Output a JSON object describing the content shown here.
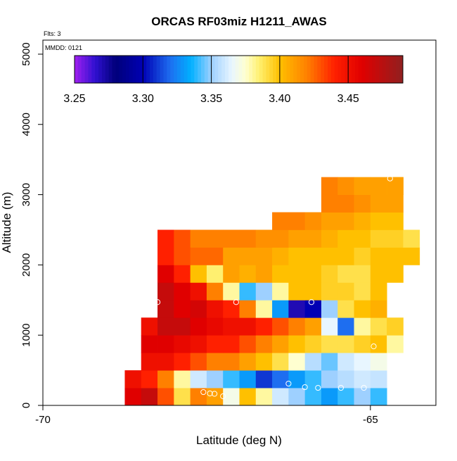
{
  "chart_data": {
    "type": "heatmap",
    "title": "ORCAS RF03miz H1211_AWAS",
    "xlabel": "Latitude (deg N)",
    "ylabel": "Altitude (m)",
    "annotations": {
      "flights": "Flts: 3",
      "date": "MMDD: 0121"
    },
    "x_ticks": [
      -70,
      -65
    ],
    "y_ticks": [
      0,
      1000,
      2000,
      3000,
      4000,
      5000
    ],
    "xlim": [
      -70,
      -64
    ],
    "ylim": [
      0,
      5200
    ],
    "colorbar": {
      "range": [
        3.25,
        3.49
      ],
      "ticks": [
        3.25,
        3.3,
        3.35,
        3.4,
        3.45
      ],
      "tick_labels": [
        "3.25",
        "3.30",
        "3.35",
        "3.40",
        "3.45"
      ],
      "stops": [
        [
          3.25,
          "#a020f0"
        ],
        [
          3.265,
          "#3010d0"
        ],
        [
          3.28,
          "#00007a"
        ],
        [
          3.3,
          "#0000b4"
        ],
        [
          3.32,
          "#1e6ef0"
        ],
        [
          3.335,
          "#00b0ff"
        ],
        [
          3.35,
          "#9ed0ff"
        ],
        [
          3.365,
          "#e8f6ff"
        ],
        [
          3.375,
          "#ffffd0"
        ],
        [
          3.385,
          "#fff070"
        ],
        [
          3.4,
          "#ffc000"
        ],
        [
          3.42,
          "#ff8000"
        ],
        [
          3.44,
          "#ff2000"
        ],
        [
          3.46,
          "#e00000"
        ],
        [
          3.49,
          "#902020"
        ]
      ]
    },
    "cell": {
      "lat_width": 0.25,
      "alt_height": 250
    },
    "rows": [
      {
        "alt": 125,
        "lat0": -68.75,
        "values": [
          3.46,
          3.47,
          3.43,
          3.39,
          3.42,
          3.41,
          3.37,
          3.4,
          3.38,
          3.36,
          3.35,
          3.34,
          3.33,
          3.34,
          3.35,
          3.34
        ]
      },
      {
        "alt": 375,
        "lat0": -68.75,
        "values": [
          3.45,
          3.44,
          3.42,
          3.38,
          3.36,
          3.35,
          3.34,
          3.33,
          3.31,
          3.32,
          3.33,
          3.34,
          3.35,
          3.355,
          3.36,
          3.358
        ]
      },
      {
        "alt": 625,
        "lat0": -68.5,
        "values": [
          3.45,
          3.45,
          3.44,
          3.43,
          3.42,
          3.42,
          3.41,
          3.4,
          3.39,
          3.375,
          3.355,
          3.345,
          3.36,
          3.365,
          3.37
        ]
      },
      {
        "alt": 875,
        "lat0": -68.5,
        "values": [
          3.46,
          3.46,
          3.455,
          3.45,
          3.44,
          3.44,
          3.43,
          3.42,
          3.41,
          3.4,
          3.395,
          3.39,
          3.39,
          3.395,
          3.4,
          3.38
        ]
      },
      {
        "alt": 1125,
        "lat0": -68.5,
        "values": [
          3.45,
          3.47,
          3.47,
          3.46,
          3.455,
          3.45,
          3.45,
          3.44,
          3.43,
          3.42,
          3.41,
          3.365,
          3.32,
          3.38,
          3.39,
          3.395
        ]
      },
      {
        "alt": 1375,
        "lat0": -68.25,
        "values": [
          3.47,
          3.46,
          3.465,
          3.45,
          3.44,
          3.42,
          3.38,
          3.33,
          3.27,
          3.3,
          3.35,
          3.39,
          3.4,
          3.405
        ]
      },
      {
        "alt": 1625,
        "lat0": -68.25,
        "values": [
          3.47,
          3.46,
          3.45,
          3.42,
          3.38,
          3.34,
          3.35,
          3.38,
          3.4,
          3.4,
          3.395,
          3.395,
          3.39,
          3.4
        ]
      },
      {
        "alt": 1875,
        "lat0": -68.25,
        "values": [
          3.46,
          3.44,
          3.4,
          3.385,
          3.41,
          3.405,
          3.41,
          3.4,
          3.4,
          3.4,
          3.395,
          3.39,
          3.39,
          3.4,
          3.4
        ]
      },
      {
        "alt": 2125,
        "lat0": -68.25,
        "values": [
          3.44,
          3.43,
          3.425,
          3.425,
          3.41,
          3.41,
          3.41,
          3.405,
          3.4,
          3.4,
          3.4,
          3.4,
          3.395,
          3.4,
          3.4,
          3.4
        ]
      },
      {
        "alt": 2375,
        "lat0": -68.25,
        "values": [
          3.44,
          3.43,
          3.42,
          3.42,
          3.42,
          3.42,
          3.415,
          3.415,
          3.41,
          3.41,
          3.405,
          3.4,
          3.4,
          3.395,
          3.395,
          3.39
        ]
      },
      {
        "alt": 2625,
        "lat0": -66.5,
        "values": [
          3.42,
          3.42,
          3.415,
          3.41,
          3.41,
          3.405,
          3.4,
          3.4
        ]
      },
      {
        "alt": 2875,
        "lat0": -65.75,
        "values": [
          3.42,
          3.42,
          3.415,
          3.41,
          3.41
        ]
      },
      {
        "alt": 3125,
        "lat0": -65.75,
        "values": [
          3.42,
          3.415,
          3.41,
          3.41,
          3.4
        ]
      },
      {
        "alt": 3125,
        "lat0": -64.75,
        "values": [
          3.41
        ]
      }
    ],
    "flight_points": [
      {
        "lat": -68.85,
        "alt": 160
      },
      {
        "lat": -68.8,
        "alt": 160
      },
      {
        "lat": -68.82,
        "alt": 295
      },
      {
        "lat": -68.4,
        "alt": 2235
      },
      {
        "lat": -68.25,
        "alt": 1470
      },
      {
        "lat": -68.3,
        "alt": 1300
      },
      {
        "lat": -67.55,
        "alt": 190
      },
      {
        "lat": -67.45,
        "alt": 170
      },
      {
        "lat": -67.38,
        "alt": 165
      },
      {
        "lat": -67.25,
        "alt": 130
      },
      {
        "lat": -67.05,
        "alt": 1470
      },
      {
        "lat": -66.25,
        "alt": 310
      },
      {
        "lat": -65.9,
        "alt": 1470
      },
      {
        "lat": -66.0,
        "alt": 260
      },
      {
        "lat": -65.8,
        "alt": 250
      },
      {
        "lat": -65.45,
        "alt": 250
      },
      {
        "lat": -65.1,
        "alt": 250
      },
      {
        "lat": -64.95,
        "alt": 840
      },
      {
        "lat": -64.7,
        "alt": 3230
      }
    ]
  }
}
